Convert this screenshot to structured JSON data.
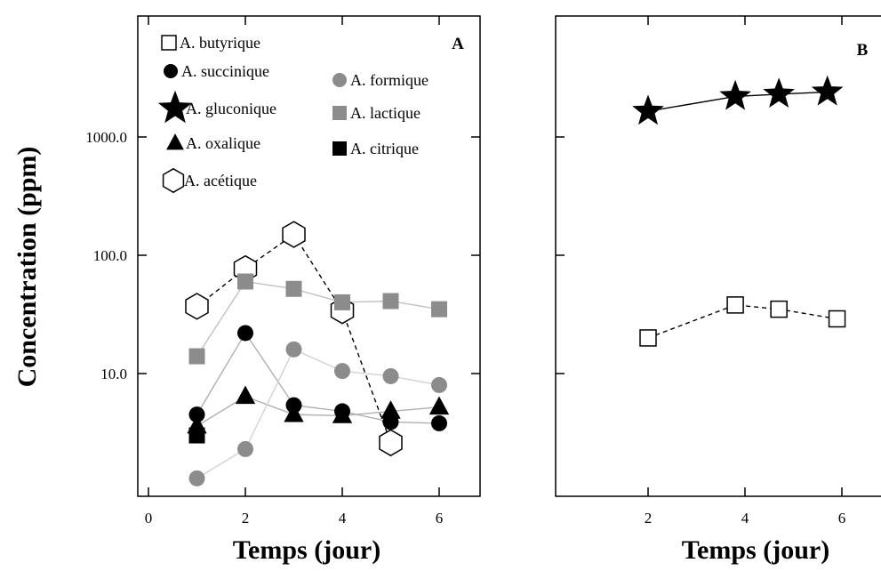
{
  "chart_data": [
    {
      "type": "scatter",
      "panel_label": "A",
      "xlabel": "Temps (jour)",
      "ylabel": "Concentration (ppm)",
      "xlim": [
        0,
        7
      ],
      "ylim": [
        1,
        8000
      ],
      "yscale": "log",
      "x_ticks": [
        {
          "value": 0,
          "label": "0"
        },
        {
          "value": 2,
          "label": "2"
        },
        {
          "value": 4,
          "label": "4"
        },
        {
          "value": 6,
          "label": "6"
        }
      ],
      "y_ticks": [
        {
          "value": 10,
          "label": "10.0"
        },
        {
          "value": 100,
          "label": "100.0"
        },
        {
          "value": 1000,
          "label": "1000.0"
        }
      ],
      "grid": false,
      "legend_position": "top-left",
      "series": [
        {
          "name": "A. butyrique",
          "marker": "square-open",
          "color": "#000000",
          "line": "none",
          "points": []
        },
        {
          "name": "A. succinique",
          "marker": "circle",
          "color": "#000000",
          "line": "solid",
          "line_color": "#b0b0b0",
          "points": [
            [
              1,
              4.5
            ],
            [
              2,
              22
            ],
            [
              3,
              5.4
            ],
            [
              4,
              4.8
            ],
            [
              5,
              3.9
            ],
            [
              6,
              3.8
            ]
          ]
        },
        {
          "name": "A. gluconique",
          "marker": "star",
          "color": "#000000",
          "line": "none",
          "points": []
        },
        {
          "name": "A. oxalique",
          "marker": "triangle",
          "color": "#000000",
          "line": "solid",
          "line_color": "#b0b0b0",
          "points": [
            [
              1,
              3.6
            ],
            [
              2,
              6.4
            ],
            [
              3,
              4.5
            ],
            [
              4,
              4.4
            ],
            [
              5,
              4.8
            ],
            [
              6,
              5.2
            ]
          ]
        },
        {
          "name": "A. acétique",
          "marker": "hexagon-open",
          "color": "#000000",
          "line": "dashed",
          "line_color": "#000000",
          "points": [
            [
              1,
              37
            ],
            [
              2,
              77
            ],
            [
              3,
              150
            ],
            [
              4,
              34
            ],
            [
              5,
              2.6
            ]
          ]
        },
        {
          "name": "A. formique",
          "marker": "circle",
          "color": "#8c8c8c",
          "line": "solid",
          "line_color": "#d2d2d2",
          "points": [
            [
              1,
              1.3
            ],
            [
              2,
              2.3
            ],
            [
              3,
              16
            ],
            [
              4,
              10.5
            ],
            [
              5,
              9.5
            ],
            [
              6,
              8
            ]
          ]
        },
        {
          "name": "A. lactique",
          "marker": "square",
          "color": "#8c8c8c",
          "line": "solid",
          "line_color": "#c2c2c2",
          "points": [
            [
              1,
              14
            ],
            [
              2,
              60
            ],
            [
              3,
              52
            ],
            [
              4,
              40
            ],
            [
              5,
              41
            ],
            [
              6,
              35
            ]
          ]
        },
        {
          "name": "A. citrique",
          "marker": "square",
          "color": "#000000",
          "line": "none",
          "points": [
            [
              1,
              3.0
            ]
          ]
        }
      ]
    },
    {
      "type": "scatter",
      "panel_label": "B",
      "xlabel": "Temps (jour)",
      "ylabel": "",
      "xlim": [
        0,
        7
      ],
      "ylim": [
        1,
        8000
      ],
      "yscale": "log",
      "x_ticks": [
        {
          "value": 2,
          "label": "2"
        },
        {
          "value": 4,
          "label": "4"
        },
        {
          "value": 6,
          "label": "6"
        }
      ],
      "y_ticks": [],
      "grid": false,
      "series": [
        {
          "name": "A. gluconique",
          "marker": "star",
          "color": "#000000",
          "line": "solid",
          "line_color": "#000000",
          "points": [
            [
              2,
              1650
            ],
            [
              3.8,
              2200
            ],
            [
              4.7,
              2300
            ],
            [
              5.7,
              2400
            ]
          ]
        },
        {
          "name": "A. butyrique",
          "marker": "square-open",
          "color": "#000000",
          "line": "dashed",
          "line_color": "#000000",
          "points": [
            [
              2,
              20
            ],
            [
              3.8,
              38
            ],
            [
              4.7,
              35
            ],
            [
              5.9,
              29
            ]
          ]
        }
      ]
    }
  ]
}
